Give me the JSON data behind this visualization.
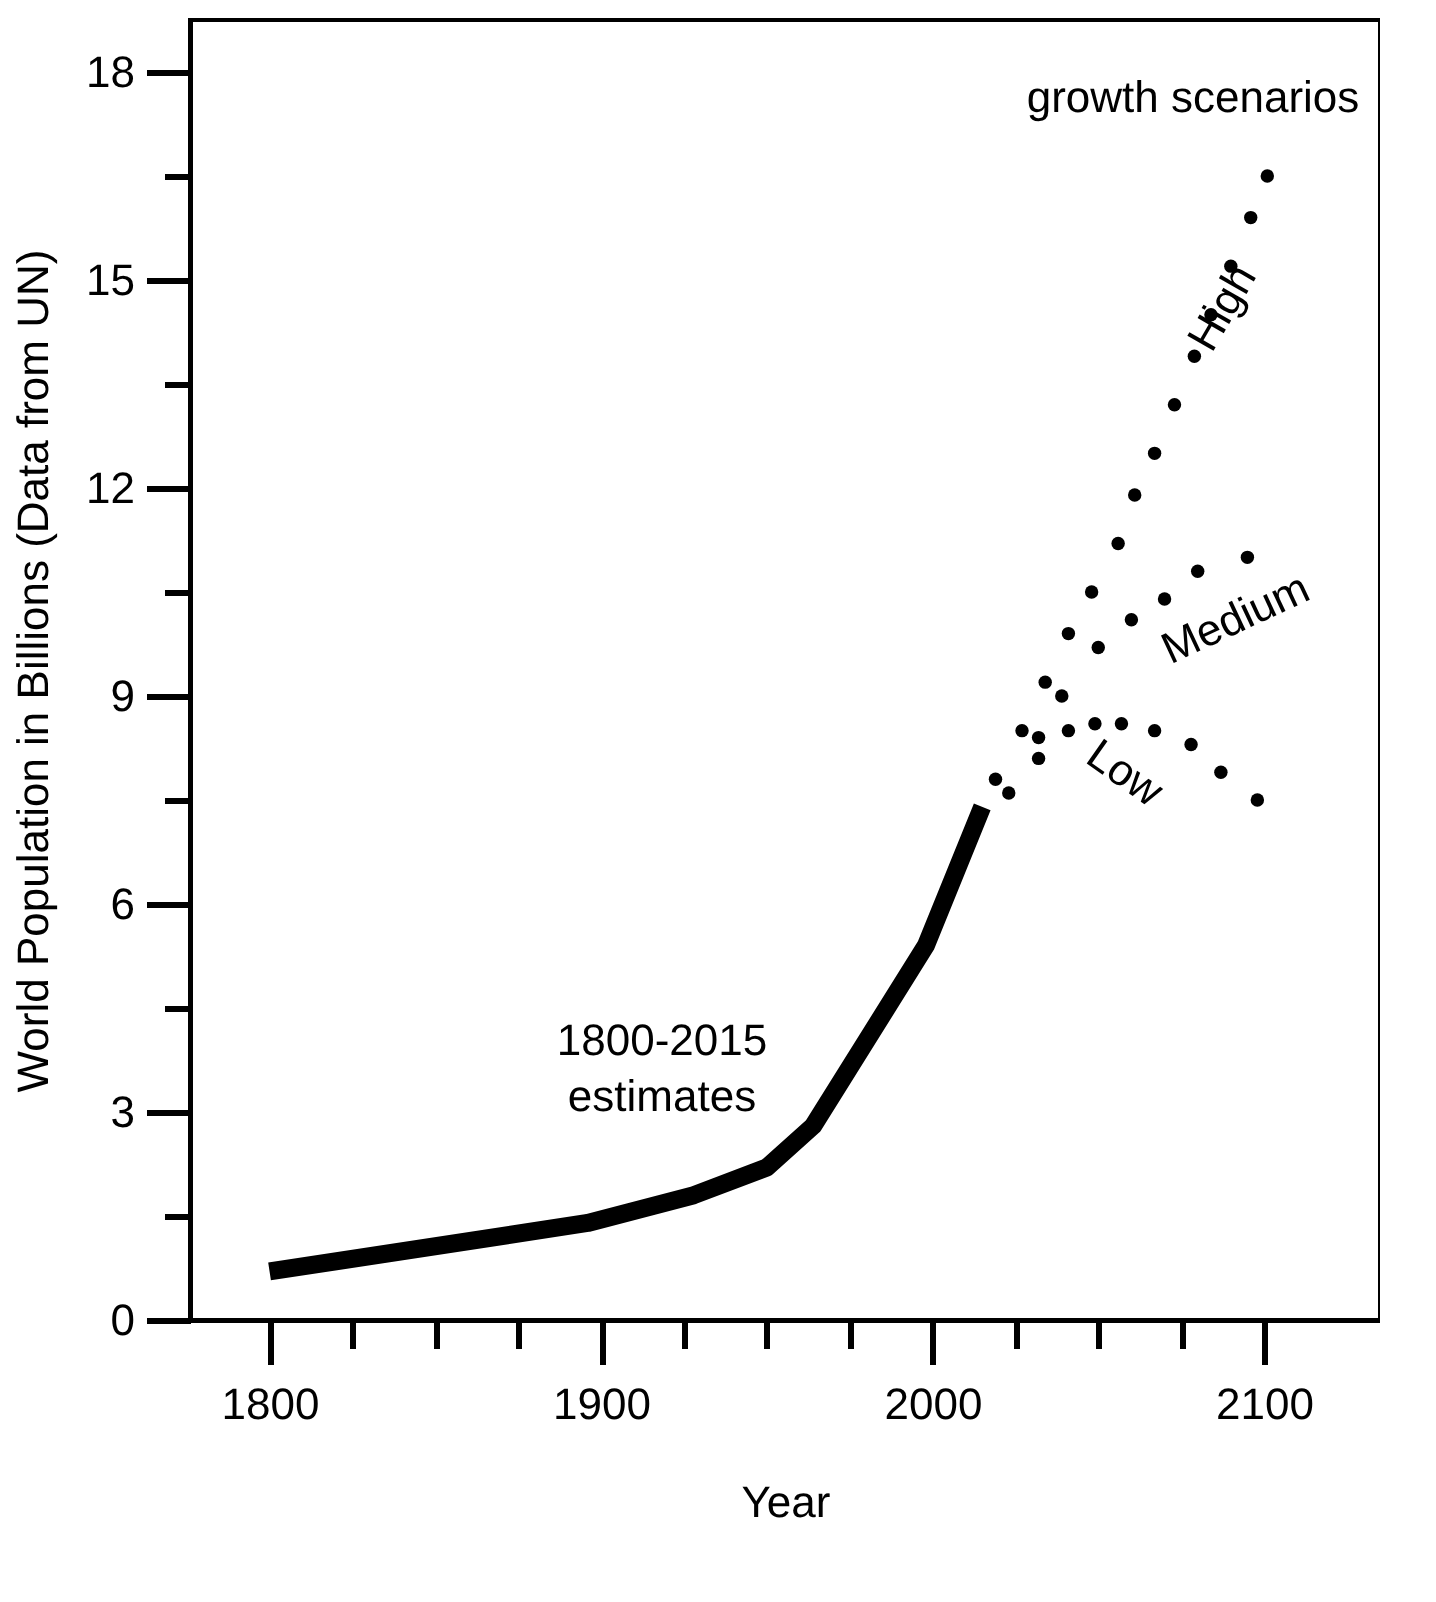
{
  "chart_data": {
    "type": "line",
    "xlabel": "Year",
    "ylabel": "World Population in Billions (Data from UN)",
    "annotations": [
      "1800-2015 estimates",
      "growth scenarios"
    ],
    "xlim": [
      1776,
      2135
    ],
    "ylim": [
      0,
      18.75
    ],
    "xticks": [
      1800,
      {
        "value": 1825,
        "label": null
      },
      {
        "value": 1850,
        "label": null
      },
      {
        "value": 1875,
        "label": null
      },
      1900,
      {
        "value": 1925,
        "label": null
      },
      {
        "value": 1950,
        "label": null
      },
      {
        "value": 1975,
        "label": null
      },
      2000,
      {
        "value": 2025,
        "label": null
      },
      {
        "value": 2050,
        "label": null
      },
      {
        "value": 2075,
        "label": null
      },
      2100
    ],
    "yticks": [
      0,
      {
        "value": 1.5,
        "label": null
      },
      3,
      {
        "value": 4.5,
        "label": null
      },
      6,
      {
        "value": 7.5,
        "label": null
      },
      9,
      {
        "value": 10.5,
        "label": null
      },
      12,
      {
        "value": 13.5,
        "label": null
      },
      15,
      {
        "value": 16.5,
        "label": null
      },
      18
    ],
    "grid": false,
    "series": [
      {
        "color": "#000000",
        "marker": "none",
        "x": [
          1800,
          1896,
          1928,
          1950,
          1964,
          1998,
          2015
        ],
        "values": [
          0.7,
          1.4,
          1.8,
          2.2,
          2.8,
          5.4,
          7.4
        ]
      },
      {
        "type": "scatter",
        "name": "High",
        "color": "#000000",
        "marker": "circle",
        "x": [
          2027,
          2034,
          2041,
          2048,
          2056,
          2061,
          2067,
          2073,
          2079,
          2084,
          2090,
          2096,
          2101
        ],
        "values": [
          8.5,
          9.2,
          9.9,
          10.5,
          11.2,
          11.9,
          12.5,
          13.2,
          13.9,
          14.5,
          15.2,
          15.9,
          16.5
        ]
      },
      {
        "type": "scatter",
        "name": "Medium",
        "color": "#000000",
        "marker": "circle",
        "x": [
          2019,
          2023,
          2032,
          2039,
          2050,
          2060,
          2070,
          2080,
          2095
        ],
        "values": [
          7.8,
          7.6,
          8.4,
          9.0,
          9.7,
          10.1,
          10.4,
          10.8,
          11.0
        ]
      },
      {
        "type": "scatter",
        "name": "Low",
        "color": "#000000",
        "marker": "circle",
        "x": [
          2032,
          2041,
          2049,
          2057,
          2067,
          2078,
          2087,
          2098
        ],
        "values": [
          8.1,
          8.5,
          8.6,
          8.6,
          8.5,
          8.3,
          7.9,
          7.5
        ]
      }
    ]
  }
}
